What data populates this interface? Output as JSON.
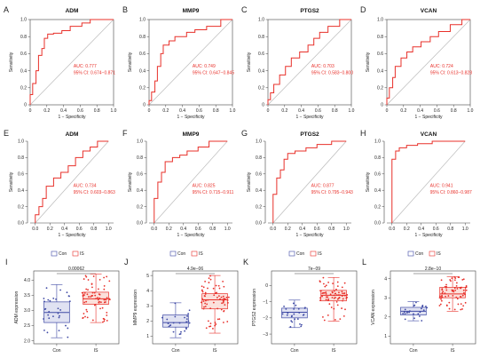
{
  "colors": {
    "roc": "#e8302a",
    "diag": "#bbbbbb",
    "con": "#3f4aa5",
    "is": "#e8302a",
    "con_fill": "#c7cbe8",
    "is_fill": "#f7c6bd"
  },
  "chart_data": [
    {
      "type": "line",
      "panel": "A",
      "title": "ADM",
      "xlabel": "1 − Specificity",
      "ylabel": "Sensitivity",
      "xlim": [
        0,
        1
      ],
      "ylim": [
        0,
        1
      ],
      "auc_text": "AUC: 0.777",
      "ci_text": "95% CI: 0.674−0.871",
      "x": [
        0,
        0,
        0.03,
        0.03,
        0.07,
        0.07,
        0.1,
        0.1,
        0.14,
        0.14,
        0.17,
        0.17,
        0.21,
        0.21,
        0.28,
        0.28,
        0.38,
        0.38,
        0.48,
        0.48,
        0.62,
        0.62,
        0.72,
        0.72,
        1
      ],
      "y": [
        0,
        0.12,
        0.12,
        0.25,
        0.25,
        0.4,
        0.4,
        0.58,
        0.58,
        0.66,
        0.66,
        0.78,
        0.78,
        0.83,
        0.83,
        0.84,
        0.84,
        0.87,
        0.87,
        0.92,
        0.92,
        0.96,
        0.96,
        1,
        1
      ]
    },
    {
      "type": "line",
      "panel": "B",
      "title": "MMP9",
      "xlabel": "1 − Specificity",
      "ylabel": "Sensitivity",
      "xlim": [
        0,
        1
      ],
      "ylim": [
        0,
        1
      ],
      "auc_text": "AUC: 0.749",
      "ci_text": "95% CI: 0.647−0.845",
      "x": [
        0,
        0,
        0.03,
        0.03,
        0.07,
        0.07,
        0.1,
        0.1,
        0.14,
        0.14,
        0.17,
        0.17,
        0.24,
        0.24,
        0.31,
        0.31,
        0.45,
        0.45,
        0.55,
        0.55,
        0.69,
        0.69,
        0.86,
        0.86,
        1
      ],
      "y": [
        0,
        0.05,
        0.05,
        0.15,
        0.15,
        0.28,
        0.28,
        0.45,
        0.45,
        0.6,
        0.6,
        0.7,
        0.7,
        0.75,
        0.75,
        0.8,
        0.8,
        0.85,
        0.85,
        0.88,
        0.88,
        0.92,
        0.92,
        1,
        1
      ]
    },
    {
      "type": "line",
      "panel": "C",
      "title": "PTGS2",
      "xlabel": "1 − Specificity",
      "ylabel": "Sensitivity",
      "xlim": [
        0,
        1
      ],
      "ylim": [
        0,
        1
      ],
      "auc_text": "AUC: 0.703",
      "ci_text": "95% CI: 0.583−0.800",
      "x": [
        0,
        0,
        0.03,
        0.03,
        0.07,
        0.07,
        0.14,
        0.14,
        0.21,
        0.21,
        0.28,
        0.28,
        0.38,
        0.38,
        0.48,
        0.48,
        0.55,
        0.55,
        0.62,
        0.62,
        0.72,
        0.72,
        0.86,
        0.86,
        1
      ],
      "y": [
        0,
        0.06,
        0.06,
        0.14,
        0.14,
        0.24,
        0.24,
        0.35,
        0.35,
        0.45,
        0.45,
        0.55,
        0.55,
        0.62,
        0.62,
        0.7,
        0.7,
        0.78,
        0.78,
        0.85,
        0.85,
        0.92,
        0.92,
        1,
        1
      ]
    },
    {
      "type": "line",
      "panel": "D",
      "title": "VCAN",
      "xlabel": "1 − Specificity",
      "ylabel": "Sensitivity",
      "xlim": [
        0,
        1
      ],
      "ylim": [
        0,
        1
      ],
      "auc_text": "AUC: 0.724",
      "ci_text": "95% CI: 0.613−0.828",
      "x": [
        0,
        0,
        0.03,
        0.03,
        0.07,
        0.07,
        0.1,
        0.1,
        0.17,
        0.17,
        0.24,
        0.24,
        0.31,
        0.31,
        0.41,
        0.41,
        0.52,
        0.52,
        0.62,
        0.62,
        0.76,
        0.76,
        0.9,
        0.9,
        1
      ],
      "y": [
        0,
        0.08,
        0.08,
        0.2,
        0.2,
        0.32,
        0.32,
        0.45,
        0.45,
        0.55,
        0.55,
        0.62,
        0.62,
        0.68,
        0.68,
        0.74,
        0.74,
        0.8,
        0.8,
        0.86,
        0.86,
        0.94,
        0.94,
        1,
        1
      ]
    },
    {
      "type": "line",
      "panel": "E",
      "title": "ADM",
      "xlabel": "1 − Specificity",
      "ylabel": "Sensitivity",
      "xlim": [
        0,
        1
      ],
      "ylim": [
        0,
        1
      ],
      "auc_text": "AUC: 0.734",
      "ci_text": "95% CI: 0.603−0.863",
      "x": [
        0,
        0,
        0.05,
        0.05,
        0.1,
        0.1,
        0.15,
        0.15,
        0.25,
        0.25,
        0.35,
        0.35,
        0.45,
        0.45,
        0.55,
        0.55,
        0.65,
        0.65,
        0.75,
        0.75,
        0.85,
        0.85,
        1
      ],
      "y": [
        0,
        0.1,
        0.1,
        0.2,
        0.2,
        0.3,
        0.3,
        0.45,
        0.45,
        0.55,
        0.55,
        0.62,
        0.62,
        0.7,
        0.7,
        0.8,
        0.8,
        0.88,
        0.88,
        0.93,
        0.93,
        1,
        1
      ]
    },
    {
      "type": "line",
      "panel": "F",
      "title": "MMP9",
      "xlabel": "1 − Specificity",
      "ylabel": "Sensitivity",
      "xlim": [
        0,
        1
      ],
      "ylim": [
        0,
        1
      ],
      "auc_text": "AUC: 0.825",
      "ci_text": "95% CI: 0.715−0.911",
      "x": [
        0,
        0,
        0.05,
        0.05,
        0.1,
        0.1,
        0.15,
        0.15,
        0.25,
        0.25,
        0.35,
        0.35,
        0.45,
        0.45,
        0.6,
        0.6,
        0.75,
        0.75,
        1
      ],
      "y": [
        0,
        0.3,
        0.3,
        0.5,
        0.5,
        0.62,
        0.62,
        0.75,
        0.75,
        0.8,
        0.8,
        0.83,
        0.83,
        0.88,
        0.88,
        0.93,
        0.93,
        1,
        1
      ]
    },
    {
      "type": "line",
      "panel": "G",
      "title": "PTGS2",
      "xlabel": "1 − Specificity",
      "ylabel": "Sensitivity",
      "xlim": [
        0,
        1
      ],
      "ylim": [
        0,
        1
      ],
      "auc_text": "AUC: 0.877",
      "ci_text": "95% CI: 0.795−0.943",
      "x": [
        0,
        0,
        0.05,
        0.05,
        0.1,
        0.1,
        0.15,
        0.15,
        0.2,
        0.2,
        0.3,
        0.3,
        0.45,
        0.45,
        0.6,
        0.6,
        0.8,
        0.8,
        1
      ],
      "y": [
        0,
        0.35,
        0.35,
        0.55,
        0.55,
        0.65,
        0.65,
        0.78,
        0.78,
        0.85,
        0.85,
        0.88,
        0.88,
        0.92,
        0.92,
        0.96,
        0.96,
        1,
        1
      ]
    },
    {
      "type": "line",
      "panel": "H",
      "title": "VCAN",
      "xlabel": "1 − Specificity",
      "ylabel": "Sensitivity",
      "xlim": [
        0,
        1
      ],
      "ylim": [
        0,
        1
      ],
      "auc_text": "AUC: 0.941",
      "ci_text": "95% CI: 0.860−0.987",
      "x": [
        0,
        0,
        0.05,
        0.05,
        0.1,
        0.1,
        0.2,
        0.2,
        0.35,
        0.35,
        0.55,
        0.55,
        1
      ],
      "y": [
        0,
        0.78,
        0.78,
        0.88,
        0.88,
        0.92,
        0.92,
        0.95,
        0.95,
        0.97,
        0.97,
        1,
        1
      ]
    },
    {
      "type": "box",
      "panel": "I",
      "gene": "ADM",
      "ylabel": "ADM expression",
      "ylim": [
        1.9,
        4.3
      ],
      "yticks": [
        2.0,
        2.5,
        3.0,
        3.5,
        4.0
      ],
      "tick_labels": [
        "2.0",
        "2.5",
        "3.0",
        "3.5",
        "4.0"
      ],
      "pvalue": "0.00062",
      "groups": [
        {
          "name": "Con",
          "q1": 2.6,
          "median": 2.93,
          "q3": 3.28,
          "whisker_low": 2.1,
          "whisker_high": 3.85,
          "n": 30
        },
        {
          "name": "IS",
          "q1": 3.2,
          "median": 3.38,
          "q3": 3.6,
          "whisker_low": 2.6,
          "whisker_high": 4.2,
          "n": 70
        }
      ]
    },
    {
      "type": "box",
      "panel": "J",
      "gene": "MMP9",
      "ylabel": "MMP9 expression",
      "ylim": [
        0.5,
        5.3
      ],
      "yticks": [
        1,
        2,
        3,
        4,
        5
      ],
      "tick_labels": [
        "1",
        "2",
        "3",
        "4",
        "5"
      ],
      "pvalue": "4.9e−06",
      "groups": [
        {
          "name": "Con",
          "q1": 1.6,
          "median": 1.9,
          "q3": 2.4,
          "whisker_low": 0.9,
          "whisker_high": 3.2,
          "n": 25
        },
        {
          "name": "IS",
          "q1": 2.8,
          "median": 3.4,
          "q3": 3.8,
          "whisker_low": 1.2,
          "whisker_high": 5.0,
          "n": 70
        }
      ]
    },
    {
      "type": "box",
      "panel": "K",
      "gene": "PTGS2",
      "ylabel": "PTGS2 expression",
      "ylim": [
        -3.6,
        0.9
      ],
      "yticks": [
        -3,
        -2,
        -1,
        0
      ],
      "tick_labels": [
        "−3",
        "−2",
        "−1",
        "0"
      ],
      "pvalue": "7e−09",
      "groups": [
        {
          "name": "Con",
          "q1": -2.0,
          "median": -1.65,
          "q3": -1.4,
          "whisker_low": -2.6,
          "whisker_high": -0.9,
          "n": 25
        },
        {
          "name": "IS",
          "q1": -0.95,
          "median": -0.6,
          "q3": -0.3,
          "whisker_low": -2.2,
          "whisker_high": 0.5,
          "n": 70
        }
      ]
    },
    {
      "type": "box",
      "panel": "L",
      "gene": "VCAN",
      "ylabel": "VCAN expression",
      "ylim": [
        0.6,
        4.4
      ],
      "yticks": [
        1,
        2,
        3,
        4
      ],
      "tick_labels": [
        "1",
        "2",
        "3",
        "4"
      ],
      "pvalue": "2.8e−10",
      "groups": [
        {
          "name": "Con",
          "q1": 2.1,
          "median": 2.3,
          "q3": 2.5,
          "whisker_low": 1.8,
          "whisker_high": 2.8,
          "n": 25
        },
        {
          "name": "IS",
          "q1": 3.0,
          "median": 3.2,
          "q3": 3.55,
          "whisker_low": 2.3,
          "whisker_high": 4.1,
          "n": 70
        }
      ]
    }
  ],
  "legend": {
    "labels": [
      "Con",
      "IS"
    ]
  }
}
